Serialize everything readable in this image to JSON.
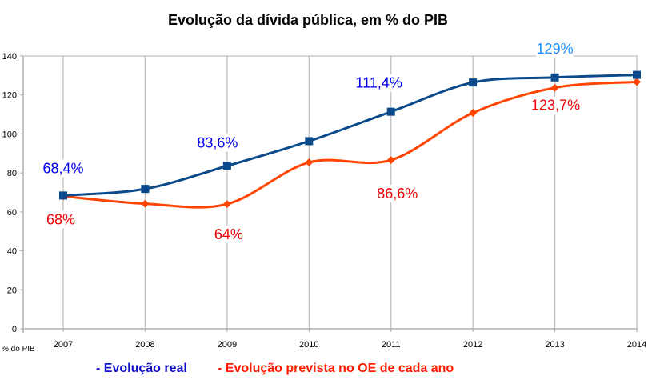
{
  "chart_data": {
    "type": "line",
    "title": "Evolução da dívida pública, em % do PIB",
    "ylabel": "% do PIB",
    "xlabel": "",
    "categories": [
      "2007",
      "2008",
      "2009",
      "2010",
      "2011",
      "2012",
      "2013",
      "2014"
    ],
    "ylim": [
      0,
      140
    ],
    "yticks": [
      0,
      20,
      40,
      60,
      80,
      100,
      120,
      140
    ],
    "grid": "vertical",
    "smooth": true,
    "series": [
      {
        "name": "- Evolução real",
        "color": "#0a4a8a",
        "label_color": "#0000ee",
        "marker": "square",
        "values": [
          68.4,
          71.8,
          83.6,
          96.3,
          111.4,
          126.4,
          129.0,
          130.3
        ],
        "labels": {
          "0": "68,4%",
          "2": "83,6%",
          "4": "111,4%",
          "6": "129%"
        }
      },
      {
        "name": "- Evolução prevista no  OE de cada ano",
        "color": "#ff4500",
        "label_color": "#ee0000",
        "marker": "diamond",
        "values": [
          68.0,
          64.2,
          64.0,
          85.4,
          86.6,
          110.8,
          123.7,
          126.7
        ],
        "labels": {
          "0": "68%",
          "2": "64%",
          "4": "86,6%",
          "6": "123,7%"
        }
      }
    ],
    "legend": "bottom"
  }
}
